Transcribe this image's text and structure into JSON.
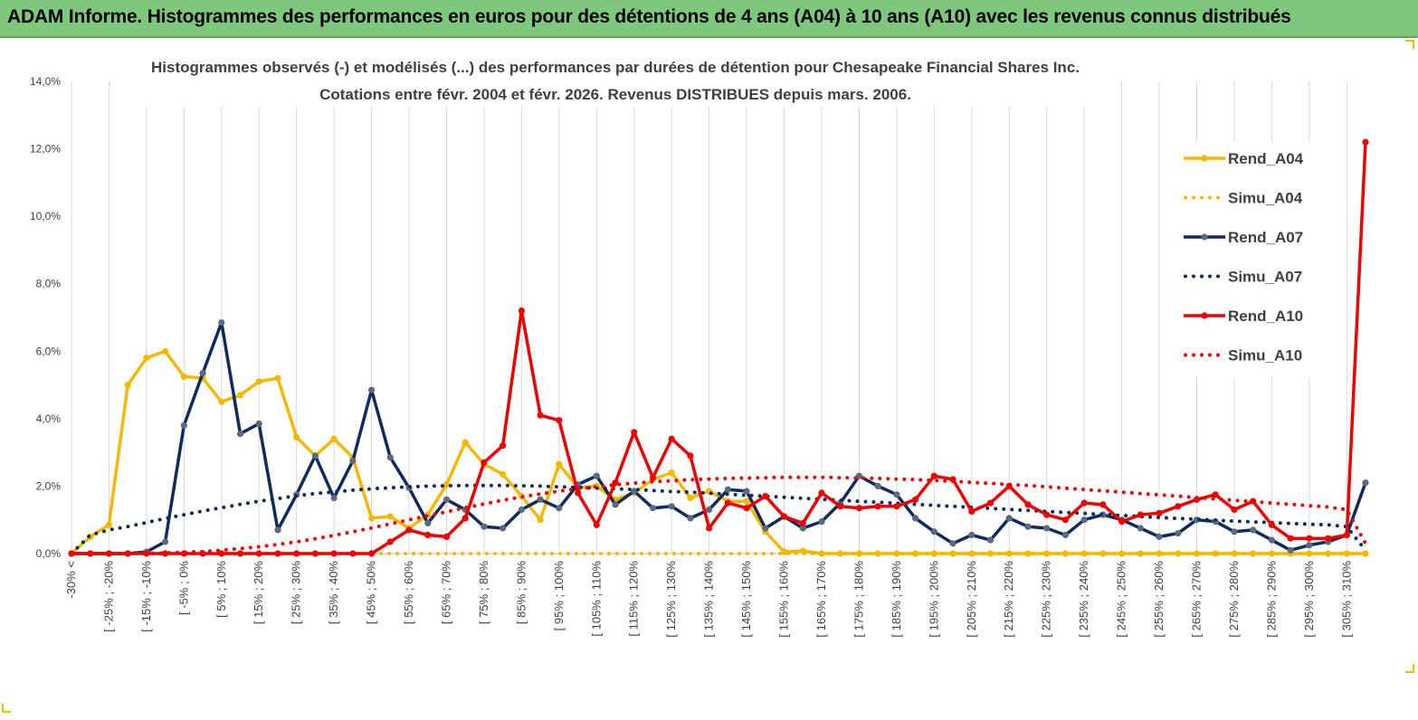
{
  "banner": {
    "title": "ADAM Informe. Histogrammes des performances en euros pour des détentions de 4 ans (A04) à 10 ans (A10) avec les revenus connus distribués"
  },
  "colors": {
    "banner_bg": "#7ec87e",
    "a04": "#f5b800",
    "a07": "#0f2a5c",
    "a07_marker": "#5a6a80",
    "a10": "#ee0000",
    "grid": "#d9d9d9",
    "axis": "#bfbfbf"
  },
  "chart_data": {
    "type": "line",
    "title_lines": [
      "Histogrammes observés (-) et modélisés (...) des performances par durées de détention pour Chesapeake Financial Shares Inc.",
      "Cotations entre févr. 2004 et févr. 2026. Revenus DISTRIBUES depuis mars. 2006."
    ],
    "ylim": [
      0,
      14
    ],
    "y_ticks": [
      "0,0%",
      "2,0%",
      "4,0%",
      "6,0%",
      "8,0%",
      "10,0%",
      "12,0%",
      "14,0%"
    ],
    "x_tick_labels": [
      "-30% <",
      "[ -25% ; -20%",
      "[ -15% ; -10%",
      "[ -5% ; 0%",
      "[ 5% ; 10%",
      "[ 15% ; 20%",
      "[ 25% ; 30%",
      "[ 35% ; 40%",
      "[ 45% ; 50%",
      "[ 55% ; 60%",
      "[ 65% ; 70%",
      "[ 75% ; 80%",
      "[ 85% ; 90%",
      "[ 95% ; 100%",
      "[ 105% ; 110%",
      "[ 115% ; 120%",
      "[ 125% ; 130%",
      "[ 135% ; 140%",
      "[ 145% ; 150%",
      "[ 155% ; 160%",
      "[ 165% ; 170%",
      "[ 175% ; 180%",
      "[ 185% ; 190%",
      "[ 195% ; 200%",
      "[ 205% ; 210%",
      "[ 215% ; 220%",
      "[ 225% ; 230%",
      "[ 235% ; 240%",
      "[ 245% ; 250%",
      "[ 255% ; 260%",
      "[ 265% ; 270%",
      "[ 275% ; 280%",
      "[ 285% ; 290%",
      "[ 295% ; 300%",
      "[ 305% ; 310%"
    ],
    "n_points": 70,
    "series": [
      {
        "name": "Rend_A04",
        "style": "solid",
        "color": "#f5b800",
        "values": [
          0,
          0.5,
          0.85,
          5.0,
          5.8,
          6.0,
          5.25,
          5.2,
          4.5,
          4.7,
          5.1,
          5.2,
          3.45,
          2.9,
          3.4,
          2.85,
          1.05,
          1.1,
          0.75,
          1.15,
          2.05,
          3.3,
          2.65,
          2.35,
          1.7,
          1.0,
          2.65,
          1.95,
          2.0,
          1.6,
          1.8,
          2.2,
          2.4,
          1.65,
          1.85,
          1.55,
          1.55,
          0.65,
          0.05,
          0.08,
          0,
          0,
          0,
          0,
          0,
          0,
          0,
          0,
          0,
          0,
          0,
          0,
          0,
          0,
          0,
          0,
          0,
          0,
          0,
          0,
          0,
          0,
          0,
          0,
          0,
          0,
          0,
          0,
          0,
          0
        ]
      },
      {
        "name": "Simu_A04",
        "style": "dotted",
        "color": "#f5b800",
        "values": [
          0,
          0,
          0,
          0,
          0,
          0,
          0,
          0,
          0,
          0,
          0,
          0,
          0,
          0,
          0,
          0,
          0,
          0,
          0,
          0,
          0,
          0,
          0,
          0,
          0,
          0,
          0,
          0,
          0,
          0,
          0,
          0,
          0,
          0,
          0,
          0,
          0,
          0,
          0,
          0,
          0,
          0,
          0,
          0,
          0,
          0,
          0,
          0,
          0,
          0,
          0,
          0,
          0,
          0,
          0,
          0,
          0,
          0,
          0,
          0,
          0,
          0,
          0,
          0,
          0,
          0,
          0,
          0,
          0,
          0
        ]
      },
      {
        "name": "Rend_A07",
        "style": "solid",
        "color": "#0f2a5c",
        "values": [
          0,
          0,
          0,
          0,
          0.05,
          0.35,
          3.8,
          5.35,
          6.85,
          3.55,
          3.85,
          0.7,
          1.75,
          2.9,
          1.65,
          2.75,
          4.85,
          2.85,
          1.95,
          0.9,
          1.6,
          1.3,
          0.8,
          0.75,
          1.3,
          1.6,
          1.35,
          2.05,
          2.3,
          1.45,
          1.85,
          1.35,
          1.4,
          1.05,
          1.3,
          1.9,
          1.85,
          0.75,
          1.1,
          0.75,
          0.95,
          1.5,
          2.3,
          2.0,
          1.75,
          1.05,
          0.65,
          0.3,
          0.55,
          0.4,
          1.05,
          0.8,
          0.75,
          0.55,
          1.0,
          1.15,
          1.0,
          0.75,
          0.5,
          0.6,
          1.0,
          0.95,
          0.65,
          0.7,
          0.4,
          0.1,
          0.25,
          0.35,
          0.55,
          2.1
        ]
      },
      {
        "name": "Simu_A07",
        "style": "dotted",
        "color": "#0f2a5c",
        "values": [
          0,
          0.55,
          0.7,
          0.8,
          0.92,
          1.04,
          1.15,
          1.26,
          1.36,
          1.46,
          1.55,
          1.63,
          1.71,
          1.78,
          1.83,
          1.88,
          1.92,
          1.95,
          1.98,
          2.0,
          2.01,
          2.02,
          2.02,
          2.02,
          2.01,
          2.0,
          1.98,
          1.96,
          1.94,
          1.92,
          1.9,
          1.87,
          1.84,
          1.82,
          1.79,
          1.76,
          1.73,
          1.7,
          1.67,
          1.64,
          1.61,
          1.58,
          1.55,
          1.52,
          1.49,
          1.46,
          1.43,
          1.4,
          1.37,
          1.34,
          1.31,
          1.28,
          1.25,
          1.22,
          1.19,
          1.16,
          1.13,
          1.1,
          1.07,
          1.04,
          1.02,
          0.99,
          0.96,
          0.94,
          0.92,
          0.89,
          0.87,
          0.85,
          0.8,
          0.1
        ]
      },
      {
        "name": "Rend_A10",
        "style": "solid",
        "color": "#ee0000",
        "values": [
          0,
          0,
          0,
          0,
          0,
          0,
          0,
          0,
          0,
          0,
          0,
          0,
          0,
          0,
          0,
          0,
          0,
          0.35,
          0.7,
          0.55,
          0.5,
          1.05,
          2.7,
          3.2,
          7.2,
          4.1,
          3.95,
          1.8,
          0.85,
          2.1,
          3.6,
          2.25,
          3.4,
          2.9,
          0.75,
          1.5,
          1.35,
          1.7,
          1.1,
          0.9,
          1.8,
          1.4,
          1.35,
          1.4,
          1.4,
          1.6,
          2.3,
          2.2,
          1.25,
          1.5,
          2.0,
          1.45,
          1.15,
          1.0,
          1.5,
          1.45,
          0.95,
          1.15,
          1.2,
          1.4,
          1.6,
          1.75,
          1.3,
          1.55,
          0.85,
          0.45,
          0.45,
          0.45,
          0.55,
          12.2
        ]
      },
      {
        "name": "Simu_A10",
        "style": "dotted",
        "color": "#ee0000",
        "values": [
          0,
          0,
          0,
          0,
          0,
          0.02,
          0.04,
          0.06,
          0.1,
          0.15,
          0.2,
          0.27,
          0.35,
          0.44,
          0.54,
          0.65,
          0.76,
          0.88,
          1.0,
          1.12,
          1.24,
          1.36,
          1.47,
          1.58,
          1.68,
          1.77,
          1.85,
          1.92,
          1.98,
          2.04,
          2.09,
          2.13,
          2.16,
          2.19,
          2.21,
          2.23,
          2.24,
          2.25,
          2.26,
          2.26,
          2.26,
          2.25,
          2.24,
          2.23,
          2.21,
          2.19,
          2.17,
          2.14,
          2.11,
          2.08,
          2.05,
          2.02,
          1.98,
          1.94,
          1.9,
          1.86,
          1.82,
          1.78,
          1.74,
          1.7,
          1.66,
          1.62,
          1.58,
          1.54,
          1.5,
          1.46,
          1.42,
          1.38,
          1.3,
          0.3
        ]
      }
    ],
    "legend_position": "right",
    "grid": "vertical"
  }
}
